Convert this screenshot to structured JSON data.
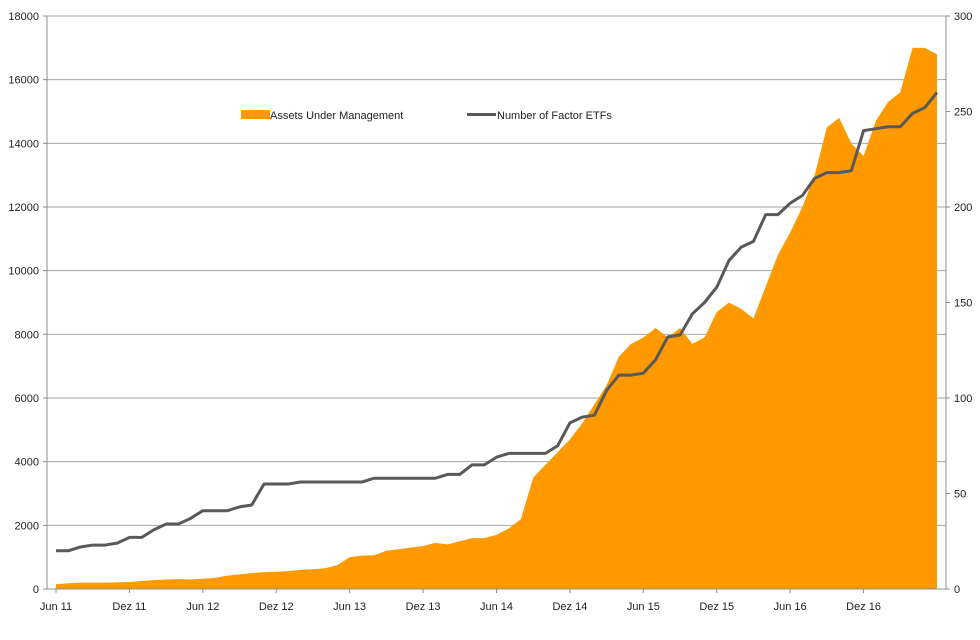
{
  "chart_data": {
    "type": "area+line",
    "title": "",
    "xlabel": "",
    "ylabel": "",
    "y2label": "",
    "ylim": [
      0,
      18000
    ],
    "y2lim": [
      0,
      300
    ],
    "yticks": [
      "0",
      "2000",
      "4000",
      "6000",
      "8000",
      "10000",
      "12000",
      "14000",
      "16000",
      "18000"
    ],
    "y2ticks": [
      "0",
      "50",
      "100",
      "150",
      "200",
      "250",
      "300"
    ],
    "xticks": [
      "Jun 11",
      "Dez 11",
      "Jun 12",
      "Dez 12",
      "Jun 13",
      "Dez 13",
      "Jun 14",
      "Dez 14",
      "Jun 15",
      "Dez 15",
      "Jun 16",
      "Dez 16"
    ],
    "grid": "horizontal",
    "legend": "top-center",
    "colors": {
      "area": "#ff9900",
      "line": "#595959",
      "grid": "#a6a6a6"
    },
    "series": [
      {
        "name": "Assets Under Management",
        "kind": "area",
        "axis": "left",
        "values": [
          150,
          180,
          200,
          200,
          200,
          210,
          220,
          250,
          280,
          300,
          310,
          300,
          320,
          350,
          420,
          460,
          500,
          530,
          540,
          560,
          600,
          620,
          650,
          750,
          1000,
          1050,
          1060,
          1200,
          1250,
          1300,
          1350,
          1450,
          1400,
          1500,
          1600,
          1600,
          1700,
          1900,
          2200,
          3500,
          3900,
          4300,
          4700,
          5200,
          5800,
          6400,
          7300,
          7700,
          7900,
          8200,
          7900,
          8200,
          7700,
          7900,
          8700,
          9000,
          8800,
          8500,
          9500,
          10500,
          11200,
          12000,
          13000,
          14500,
          14800,
          14000,
          13600,
          14700,
          15300,
          15600,
          17000,
          17000,
          16800
        ]
      },
      {
        "name": "Number of Factor ETFs",
        "kind": "line",
        "axis": "right",
        "values": [
          20,
          20,
          22,
          23,
          23,
          24,
          27,
          27,
          31,
          34,
          34,
          37,
          41,
          41,
          41,
          43,
          44,
          55,
          55,
          55,
          56,
          56,
          56,
          56,
          56,
          56,
          58,
          58,
          58,
          58,
          58,
          58,
          60,
          60,
          65,
          65,
          69,
          71,
          71,
          71,
          71,
          75,
          87,
          90,
          91,
          104,
          112,
          112,
          113,
          120,
          132,
          133,
          144,
          150,
          158,
          172,
          179,
          182,
          196,
          196,
          202,
          206,
          215,
          218,
          218,
          219,
          240,
          241,
          242,
          242,
          249,
          252,
          260
        ]
      }
    ]
  }
}
